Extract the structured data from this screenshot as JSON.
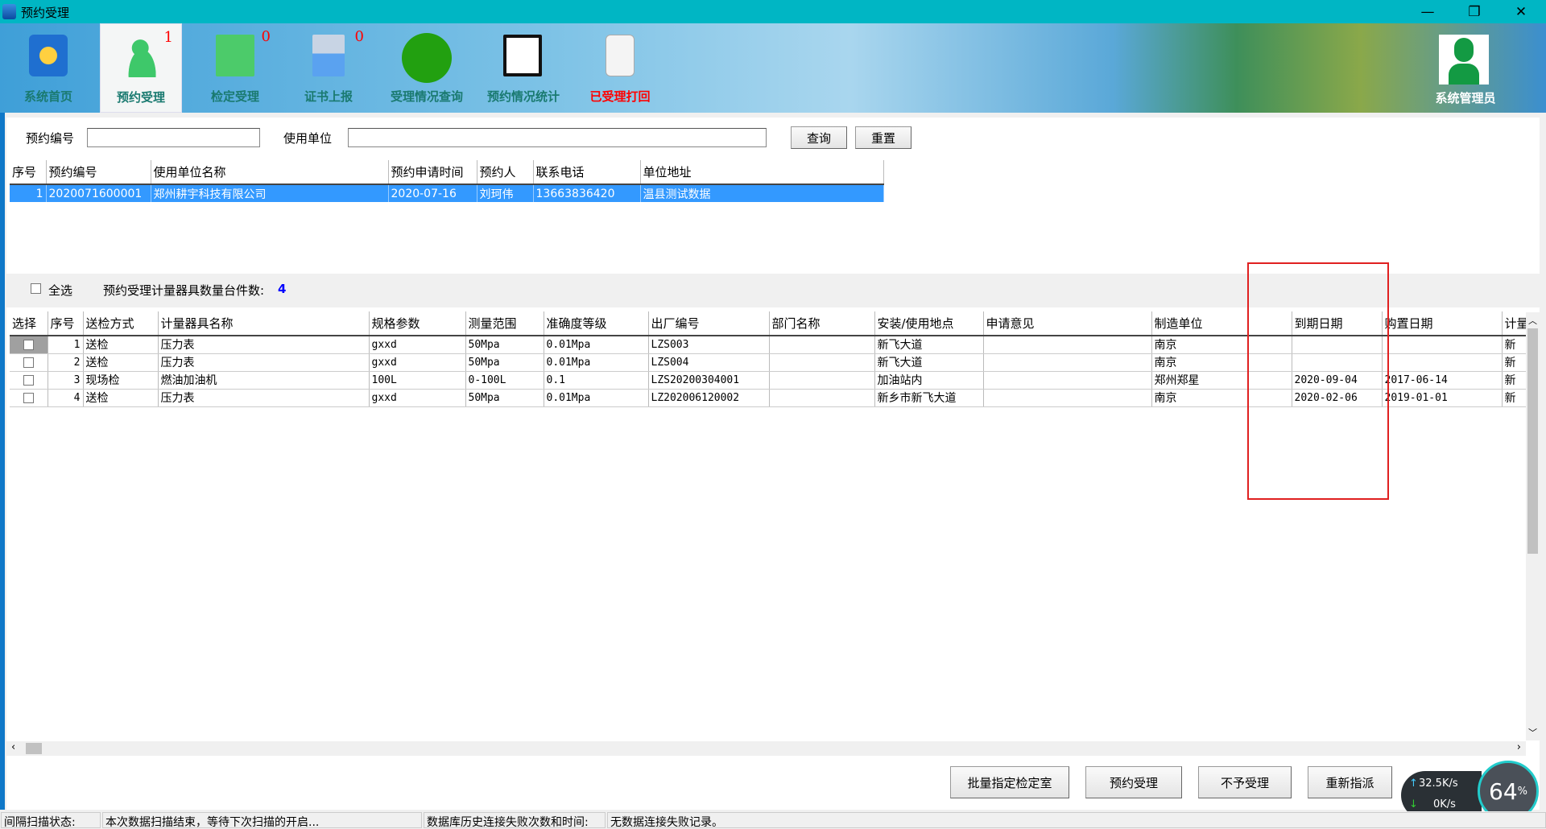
{
  "window": {
    "title": "预约受理",
    "minimize": "—",
    "restore": "❐",
    "close": "✕"
  },
  "nav": [
    {
      "label": "系统首页",
      "icon": "home-globe-icon",
      "badge": ""
    },
    {
      "label": "预约受理",
      "icon": "users-icon",
      "badge": "1",
      "selected": true
    },
    {
      "label": "检定受理",
      "icon": "pulse-icon",
      "badge": "0"
    },
    {
      "label": "证书上报",
      "icon": "upload-icon",
      "badge": "0"
    },
    {
      "label": "受理情况查询",
      "icon": "chat-icon",
      "badge": ""
    },
    {
      "label": "预约情况统计",
      "icon": "chart-icon",
      "badge": ""
    },
    {
      "label": "已受理打回",
      "icon": "document-reject-icon",
      "badge": ""
    }
  ],
  "user": {
    "label": "系统管理员"
  },
  "search": {
    "booking_no_label": "预约编号",
    "booking_no_value": "",
    "unit_label": "使用单位",
    "unit_value": "",
    "query": "查询",
    "reset": "重置"
  },
  "top_table": {
    "headers": [
      "序号",
      "预约编号",
      "使用单位名称",
      "预约申请时间",
      "预约人",
      "联系电话",
      "单位地址"
    ],
    "rows": [
      [
        "1",
        "2020071600001",
        "郑州耕宇科技有限公司",
        "2020-07-16",
        "刘珂伟",
        "13663836420",
        "温县测试数据"
      ]
    ]
  },
  "panel": {
    "select_all": "全选",
    "count_label": "预约受理计量器具数量台件数:",
    "count": "4"
  },
  "bottom_table": {
    "headers": [
      "选择",
      "序号",
      "送检方式",
      "计量器具名称",
      "规格参数",
      "测量范围",
      "准确度等级",
      "出厂编号",
      "部门名称",
      "安装/使用地点",
      "申请意见",
      "制造单位",
      "到期日期",
      "购置日期",
      "计量"
    ],
    "rows": [
      [
        "",
        "1",
        "送检",
        "压力表",
        "gxxd",
        "50Mpa",
        "0.01Mpa",
        "LZS003",
        "",
        "新飞大道",
        "",
        "南京",
        "",
        "",
        "新"
      ],
      [
        "",
        "2",
        "送检",
        "压力表",
        "gxxd",
        "50Mpa",
        "0.01Mpa",
        "LZS004",
        "",
        "新飞大道",
        "",
        "南京",
        "",
        "",
        "新"
      ],
      [
        "",
        "3",
        "现场检",
        "燃油加油机",
        "100L",
        "0-100L",
        "0.1",
        "LZS20200304001",
        "",
        "加油站内",
        "",
        "郑州郑星",
        "2020-09-04",
        "2017-06-14",
        "新"
      ],
      [
        "",
        "4",
        "送检",
        "压力表",
        "gxxd",
        "50Mpa",
        "0.01Mpa",
        "LZ202006120002",
        "",
        "新乡市新飞大道",
        "",
        "南京",
        "2020-02-06",
        "2019-01-01",
        "新"
      ]
    ]
  },
  "actions": {
    "batch_assign": "批量指定检定室",
    "accept": "预约受理",
    "reject": "不予受理",
    "reassign": "重新指派"
  },
  "network_widget": {
    "up": "32.5K/s",
    "down": "0K/s",
    "percent": "64",
    "percent_unit": "%"
  },
  "status": {
    "scan_label": "间隔扫描状态:",
    "scan_value": "本次数据扫描结束，等待下次扫描的开启...",
    "db_label": "数据库历史连接失败次数和时间:",
    "db_value": "无数据连接失败记录。"
  },
  "colors": {
    "titlebar": "#00b6c4",
    "selection": "#3399ff",
    "badge": "#ff0000",
    "highlight_box": "#e02020",
    "count": "#0000ff"
  }
}
